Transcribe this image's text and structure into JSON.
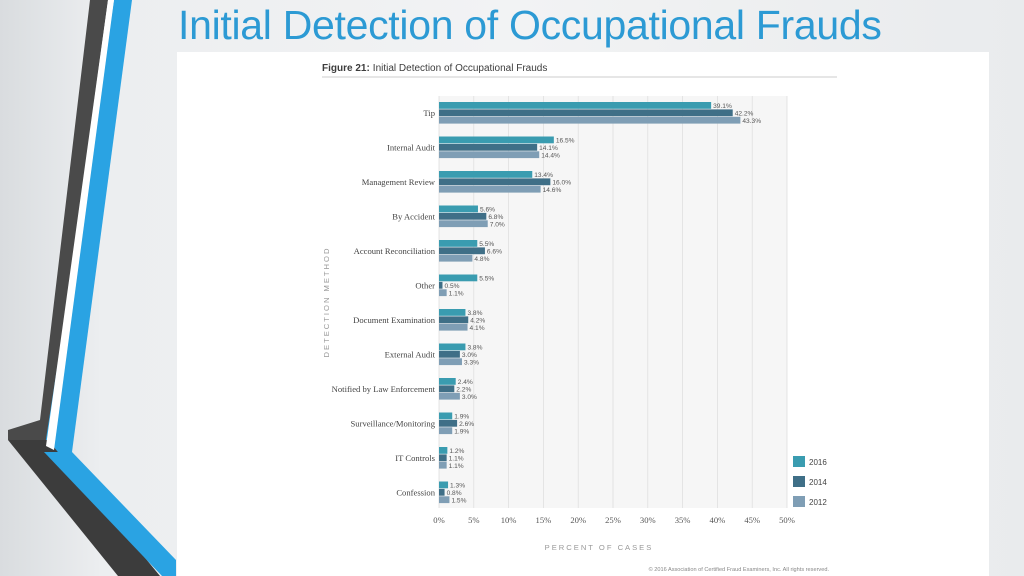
{
  "slide": {
    "title": "Initial Detection of Occupational Frauds"
  },
  "figure": {
    "label": "Figure 21:",
    "title": "Initial Detection of Occupational Frauds",
    "copyright": "© 2016 Association of Certified Fraud Examiners, Inc. All rights reserved."
  },
  "colors": {
    "title": "#2c9ad4",
    "2016": "#3a9cb0",
    "2014": "#3f6f87",
    "2012": "#7f9eb5",
    "decoDark": "#4a4a4a",
    "decoBlue": "#2aa3e3"
  },
  "chart_data": {
    "type": "bar",
    "orientation": "horizontal",
    "title": "Initial Detection of Occupational Frauds",
    "xlabel": "PERCENT OF CASES",
    "ylabel": "DETECTION METHOD",
    "xlim": [
      0,
      50
    ],
    "xticks": [
      0,
      5,
      10,
      15,
      20,
      25,
      30,
      35,
      40,
      45,
      50
    ],
    "xtick_labels": [
      "0%",
      "5%",
      "10%",
      "15%",
      "20%",
      "25%",
      "30%",
      "35%",
      "40%",
      "45%",
      "50%"
    ],
    "grid": true,
    "legend_position": "bottom-right",
    "categories": [
      "Tip",
      "Internal Audit",
      "Management Review",
      "By Accident",
      "Account Reconciliation",
      "Other",
      "Document Examination",
      "External Audit",
      "Notified by Law Enforcement",
      "Surveillance/Monitoring",
      "IT Controls",
      "Confession"
    ],
    "series": [
      {
        "name": "2016",
        "values": [
          39.1,
          16.5,
          13.4,
          5.6,
          5.5,
          5.5,
          3.8,
          3.8,
          2.4,
          1.9,
          1.2,
          1.3
        ],
        "labels": [
          "39.1%",
          "16.5%",
          "13.4%",
          "5.6%",
          "5.5%",
          "5.5%",
          "3.8%",
          "3.8%",
          "2.4%",
          "1.9%",
          "1.2%",
          "1.3%"
        ]
      },
      {
        "name": "2014",
        "values": [
          42.2,
          14.1,
          16.0,
          6.8,
          6.6,
          0.5,
          4.2,
          3.0,
          2.2,
          2.6,
          1.1,
          0.8
        ],
        "labels": [
          "42.2%",
          "14.1%",
          "16.0%",
          "6.8%",
          "6.6%",
          "0.5%",
          "4.2%",
          "3.0%",
          "2.2%",
          "2.6%",
          "1.1%",
          "0.8%"
        ]
      },
      {
        "name": "2012",
        "values": [
          43.3,
          14.4,
          14.6,
          7.0,
          4.8,
          1.1,
          4.1,
          3.3,
          3.0,
          1.9,
          1.1,
          1.5
        ],
        "labels": [
          "43.3%",
          "14.4%",
          "14.6%",
          "7.0%",
          "4.8%",
          "1.1%",
          "4.1%",
          "3.3%",
          "3.0%",
          "1.9%",
          "1.1%",
          "1.5%"
        ]
      }
    ]
  }
}
